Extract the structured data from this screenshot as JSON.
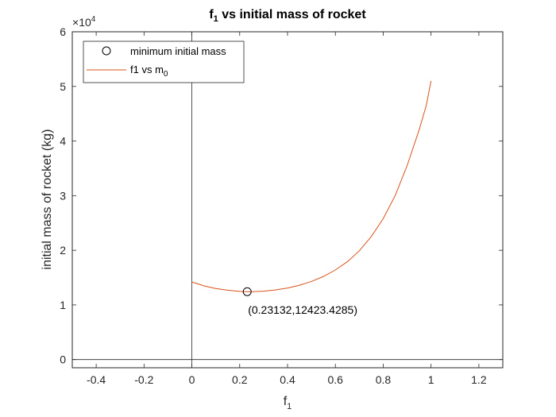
{
  "chart_data": {
    "type": "line",
    "title_main": "f",
    "title_sub": "1",
    "title_rest": " vs initial mass of rocket",
    "xlabel_main": "f",
    "xlabel_sub": "1",
    "ylabel": "initial mass of rocket (kg)",
    "xlim": [
      -0.5,
      1.3
    ],
    "ylim": [
      -1500,
      60000
    ],
    "y_scale_base": "10",
    "y_scale_exp": "4",
    "x_ticks": [
      -0.4,
      -0.2,
      0,
      0.2,
      0.4,
      0.6,
      0.8,
      1,
      1.2
    ],
    "x_tick_labels": [
      "-0.4",
      "-0.2",
      "0",
      "0.2",
      "0.4",
      "0.6",
      "0.8",
      "1",
      "1.2"
    ],
    "y_ticks": [
      0,
      10000,
      20000,
      30000,
      40000,
      50000,
      60000
    ],
    "y_tick_labels": [
      "0",
      "1",
      "2",
      "3",
      "4",
      "5",
      "6"
    ],
    "series": [
      {
        "legend_main": "f1 vs m",
        "legend_sub": "0",
        "color": "#D95319",
        "x": [
          0,
          0.05,
          0.1,
          0.15,
          0.2,
          0.23132,
          0.25,
          0.3,
          0.35,
          0.4,
          0.45,
          0.5,
          0.55,
          0.6,
          0.65,
          0.7,
          0.75,
          0.8,
          0.85,
          0.9,
          0.95,
          0.98,
          1.0
        ],
        "y": [
          14200,
          13500,
          13000,
          12700,
          12480,
          12423,
          12430,
          12520,
          12750,
          13100,
          13600,
          14300,
          15200,
          16400,
          17900,
          19900,
          22500,
          25800,
          30000,
          35500,
          42000,
          46500,
          51000
        ]
      }
    ],
    "marker": {
      "legend": "minimum initial mass",
      "x": 0.23132,
      "y": 12423.4285,
      "label": "(0.23132,12423.4285)"
    },
    "grid": false,
    "legend_position": "top-left"
  }
}
